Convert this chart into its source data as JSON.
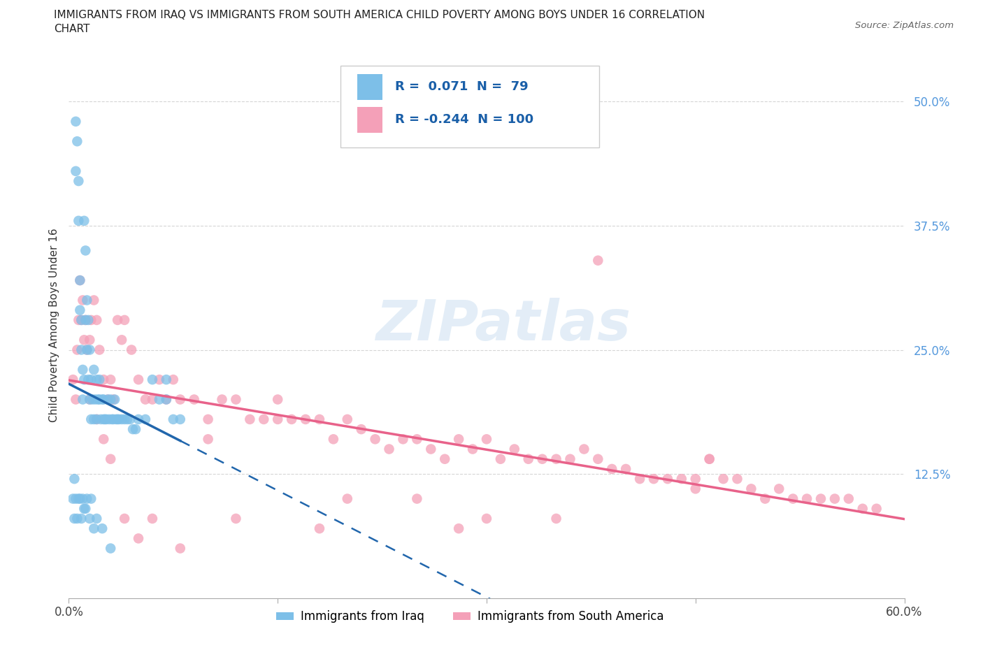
{
  "title": "IMMIGRANTS FROM IRAQ VS IMMIGRANTS FROM SOUTH AMERICA CHILD POVERTY AMONG BOYS UNDER 16 CORRELATION\nCHART",
  "source": "Source: ZipAtlas.com",
  "ylabel": "Child Poverty Among Boys Under 16",
  "xlim": [
    0.0,
    0.6
  ],
  "ylim": [
    0.0,
    0.55
  ],
  "x_ticks": [
    0.0,
    0.15,
    0.3,
    0.45,
    0.6
  ],
  "x_tick_labels": [
    "0.0%",
    "",
    "",
    "",
    "60.0%"
  ],
  "y_ticks": [
    0.125,
    0.25,
    0.375,
    0.5
  ],
  "y_tick_labels": [
    "12.5%",
    "25.0%",
    "37.5%",
    "50.0%"
  ],
  "iraq_r": 0.071,
  "iraq_n": 79,
  "sa_r": -0.244,
  "sa_n": 100,
  "iraq_color": "#7dbfe8",
  "sa_color": "#f4a0b8",
  "iraq_line_color": "#2166ac",
  "sa_line_color": "#e8628a",
  "watermark": "ZIPatlas",
  "legend_label_iraq": "Immigrants from Iraq",
  "legend_label_sa": "Immigrants from South America",
  "iraq_x": [
    0.005,
    0.005,
    0.006,
    0.007,
    0.007,
    0.008,
    0.008,
    0.009,
    0.009,
    0.01,
    0.01,
    0.011,
    0.011,
    0.012,
    0.012,
    0.013,
    0.013,
    0.014,
    0.014,
    0.015,
    0.015,
    0.016,
    0.016,
    0.017,
    0.018,
    0.018,
    0.019,
    0.02,
    0.02,
    0.021,
    0.022,
    0.022,
    0.023,
    0.024,
    0.025,
    0.025,
    0.026,
    0.027,
    0.028,
    0.029,
    0.03,
    0.031,
    0.032,
    0.033,
    0.034,
    0.035,
    0.036,
    0.038,
    0.04,
    0.042,
    0.044,
    0.046,
    0.048,
    0.05,
    0.055,
    0.06,
    0.065,
    0.07,
    0.075,
    0.08,
    0.003,
    0.004,
    0.004,
    0.005,
    0.006,
    0.007,
    0.008,
    0.009,
    0.01,
    0.011,
    0.012,
    0.013,
    0.015,
    0.016,
    0.018,
    0.02,
    0.024,
    0.03,
    0.07
  ],
  "iraq_y": [
    0.48,
    0.43,
    0.46,
    0.42,
    0.38,
    0.32,
    0.29,
    0.28,
    0.25,
    0.23,
    0.2,
    0.22,
    0.38,
    0.35,
    0.28,
    0.3,
    0.25,
    0.28,
    0.22,
    0.25,
    0.2,
    0.22,
    0.18,
    0.2,
    0.23,
    0.18,
    0.2,
    0.22,
    0.18,
    0.2,
    0.2,
    0.22,
    0.18,
    0.2,
    0.18,
    0.2,
    0.18,
    0.18,
    0.2,
    0.18,
    0.2,
    0.18,
    0.18,
    0.2,
    0.18,
    0.18,
    0.18,
    0.18,
    0.18,
    0.18,
    0.18,
    0.17,
    0.17,
    0.18,
    0.18,
    0.22,
    0.2,
    0.2,
    0.18,
    0.18,
    0.1,
    0.08,
    0.12,
    0.1,
    0.08,
    0.1,
    0.1,
    0.08,
    0.1,
    0.09,
    0.09,
    0.1,
    0.08,
    0.1,
    0.07,
    0.08,
    0.07,
    0.05,
    0.22
  ],
  "sa_x": [
    0.003,
    0.005,
    0.006,
    0.007,
    0.008,
    0.009,
    0.01,
    0.011,
    0.012,
    0.013,
    0.015,
    0.016,
    0.018,
    0.02,
    0.022,
    0.025,
    0.028,
    0.03,
    0.032,
    0.035,
    0.038,
    0.04,
    0.045,
    0.05,
    0.055,
    0.06,
    0.065,
    0.07,
    0.075,
    0.08,
    0.09,
    0.1,
    0.11,
    0.12,
    0.13,
    0.14,
    0.15,
    0.16,
    0.17,
    0.18,
    0.19,
    0.2,
    0.21,
    0.22,
    0.23,
    0.24,
    0.25,
    0.26,
    0.27,
    0.28,
    0.29,
    0.3,
    0.31,
    0.32,
    0.33,
    0.34,
    0.35,
    0.36,
    0.37,
    0.38,
    0.39,
    0.4,
    0.41,
    0.42,
    0.43,
    0.44,
    0.45,
    0.46,
    0.47,
    0.48,
    0.49,
    0.5,
    0.51,
    0.52,
    0.53,
    0.54,
    0.55,
    0.56,
    0.57,
    0.58,
    0.1,
    0.15,
    0.2,
    0.25,
    0.3,
    0.12,
    0.18,
    0.28,
    0.38,
    0.46,
    0.015,
    0.02,
    0.025,
    0.03,
    0.04,
    0.05,
    0.06,
    0.08,
    0.35,
    0.45
  ],
  "sa_y": [
    0.22,
    0.2,
    0.25,
    0.28,
    0.32,
    0.28,
    0.3,
    0.26,
    0.28,
    0.25,
    0.26,
    0.28,
    0.3,
    0.28,
    0.25,
    0.22,
    0.2,
    0.22,
    0.2,
    0.28,
    0.26,
    0.28,
    0.25,
    0.22,
    0.2,
    0.2,
    0.22,
    0.2,
    0.22,
    0.2,
    0.2,
    0.18,
    0.2,
    0.2,
    0.18,
    0.18,
    0.2,
    0.18,
    0.18,
    0.18,
    0.16,
    0.18,
    0.17,
    0.16,
    0.15,
    0.16,
    0.16,
    0.15,
    0.14,
    0.16,
    0.15,
    0.16,
    0.14,
    0.15,
    0.14,
    0.14,
    0.14,
    0.14,
    0.15,
    0.14,
    0.13,
    0.13,
    0.12,
    0.12,
    0.12,
    0.12,
    0.12,
    0.14,
    0.12,
    0.12,
    0.11,
    0.1,
    0.11,
    0.1,
    0.1,
    0.1,
    0.1,
    0.1,
    0.09,
    0.09,
    0.16,
    0.18,
    0.1,
    0.1,
    0.08,
    0.08,
    0.07,
    0.07,
    0.34,
    0.14,
    0.2,
    0.18,
    0.16,
    0.14,
    0.08,
    0.06,
    0.08,
    0.05,
    0.08,
    0.11
  ]
}
